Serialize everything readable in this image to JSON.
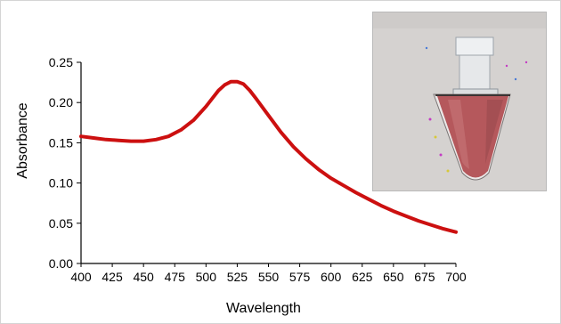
{
  "chart_data": {
    "type": "line",
    "title": "",
    "xlabel": "Wavelength",
    "ylabel": "Absorbance",
    "xlim": [
      400,
      700
    ],
    "ylim": [
      0,
      0.25
    ],
    "x_ticks": [
      "400",
      "425",
      "450",
      "475",
      "500",
      "525",
      "550",
      "575",
      "600",
      "625",
      "650",
      "675",
      "700"
    ],
    "y_ticks": [
      "0.00",
      "0.05",
      "0.10",
      "0.15",
      "0.20",
      "0.25"
    ],
    "grid": false,
    "legend": "none",
    "series": [
      {
        "color": "#cc1010",
        "x": [
          400,
          410,
          420,
          430,
          440,
          450,
          460,
          470,
          480,
          490,
          500,
          505,
          510,
          515,
          520,
          525,
          530,
          535,
          540,
          550,
          560,
          570,
          580,
          590,
          600,
          610,
          620,
          630,
          640,
          650,
          660,
          670,
          680,
          690,
          700
        ],
        "y": [
          0.158,
          0.156,
          0.154,
          0.153,
          0.152,
          0.152,
          0.154,
          0.158,
          0.166,
          0.178,
          0.195,
          0.205,
          0.215,
          0.222,
          0.226,
          0.226,
          0.223,
          0.215,
          0.205,
          0.184,
          0.163,
          0.145,
          0.13,
          0.117,
          0.106,
          0.097,
          0.088,
          0.08,
          0.072,
          0.065,
          0.059,
          0.053,
          0.048,
          0.043,
          0.039
        ]
      }
    ]
  },
  "inset_image": {
    "subject": "microcentrifuge tube with red colloidal solution",
    "background_color": "#d5d2d0",
    "liquid_color": "#b5585c"
  }
}
